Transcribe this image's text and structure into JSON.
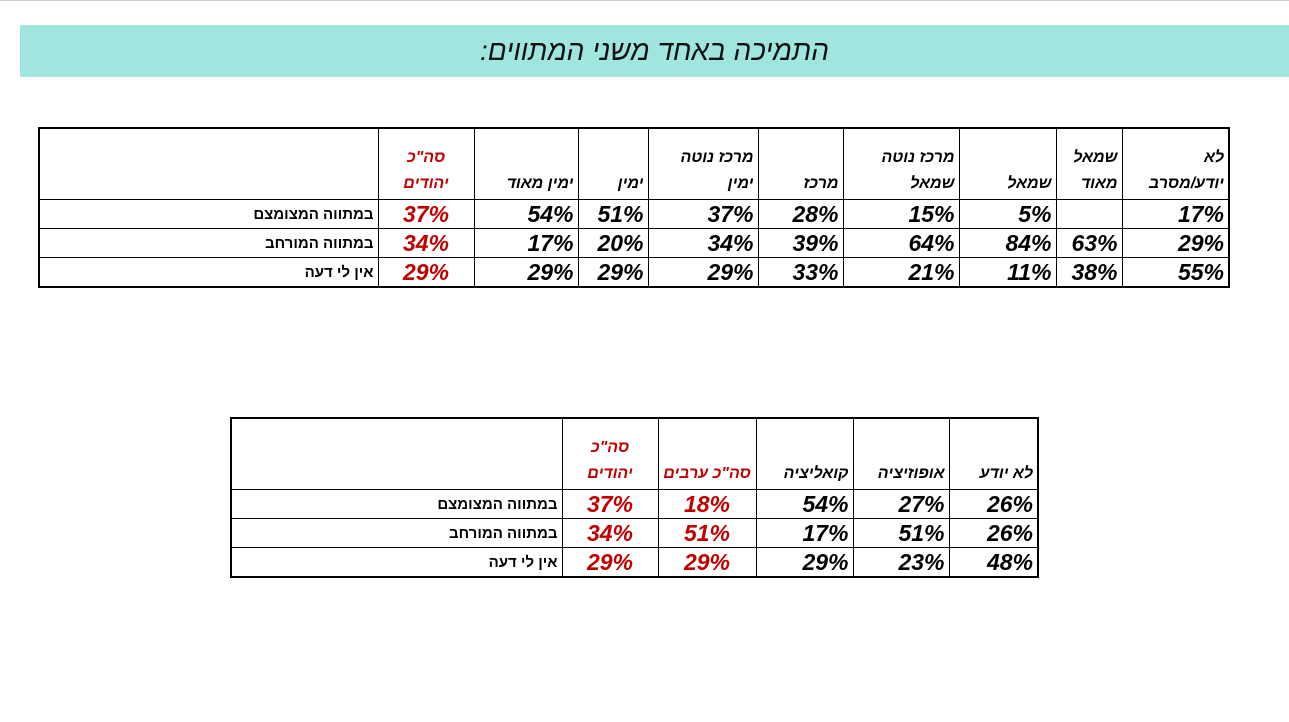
{
  "title": "התמיכה באחד משני המתווים:",
  "table1": {
    "headers": [
      "לא יודע/מסרב",
      "שמאל מאוד",
      "שמאל",
      "מרכז נוטה שמאל",
      "מרכז",
      "מרכז נוטה ימין",
      "ימין",
      "ימין מאוד",
      "סה\"כ יהודים"
    ],
    "rows": [
      {
        "label": "במתווה המצומצם",
        "values": [
          "17%",
          null,
          "5%",
          "15%",
          "28%",
          "37%",
          "51%",
          "54%",
          "37%"
        ]
      },
      {
        "label": "במתווה המורחב",
        "values": [
          "29%",
          "63%",
          "84%",
          "64%",
          "39%",
          "34%",
          "20%",
          "17%",
          "34%"
        ]
      },
      {
        "label": "אין לי דעה",
        "values": [
          "55%",
          "38%",
          "11%",
          "21%",
          "33%",
          "29%",
          "29%",
          "29%",
          "29%"
        ]
      }
    ]
  },
  "table2": {
    "headers": [
      "לא יודע",
      "אופוזיציה",
      "קואליציה",
      "סה\"כ ערבים",
      "סה\"כ יהודים"
    ],
    "rows": [
      {
        "label": "במתווה המצומצם",
        "values": [
          "26%",
          "27%",
          "54%",
          "18%",
          "37%"
        ]
      },
      {
        "label": "במתווה המורחב",
        "values": [
          "26%",
          "51%",
          "17%",
          "51%",
          "34%"
        ]
      },
      {
        "label": "אין לי דעה",
        "values": [
          "48%",
          "23%",
          "29%",
          "29%",
          "29%"
        ]
      }
    ]
  }
}
